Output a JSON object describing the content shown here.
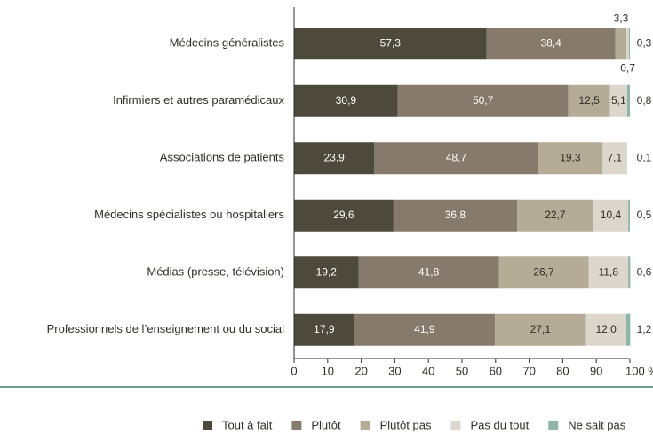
{
  "chart_data": {
    "type": "stacked_bar_horizontal",
    "categories": [
      "Médecins généralistes",
      "Infirmiers et autres paramédicaux",
      "Associations de patients",
      "Médecins spécialistes ou hospitaliers",
      "Médias (presse, télévision)",
      "Professionnels de l’enseignement ou du social"
    ],
    "series": [
      {
        "name": "Tout à fait",
        "color": "#4d4a3d",
        "values": [
          57.3,
          30.9,
          23.9,
          29.6,
          19.2,
          17.9
        ],
        "value_labels": [
          "57,3",
          "30,9",
          "23,9",
          "29,6",
          "19,2",
          "17,9"
        ]
      },
      {
        "name": "Plutôt",
        "color": "#857a6b",
        "values": [
          38.4,
          50.7,
          48.7,
          36.8,
          41.8,
          41.9
        ],
        "value_labels": [
          "38,4",
          "50,7",
          "48,7",
          "36,8",
          "41,8",
          "41,9"
        ]
      },
      {
        "name": "Plutôt pas",
        "color": "#b5ac98",
        "values": [
          3.3,
          12.5,
          19.3,
          22.7,
          26.7,
          27.1
        ],
        "value_labels": [
          "3,3",
          "12,5",
          "19,3",
          "22,7",
          "26,7",
          "27,1"
        ]
      },
      {
        "name": "Pas du tout",
        "color": "#ddd6cc",
        "values": [
          0.7,
          5.1,
          7.1,
          10.4,
          11.8,
          12.0
        ],
        "value_labels": [
          "0,7",
          "5,1",
          "7,1",
          "10,4",
          "11,8",
          "12,0"
        ]
      },
      {
        "name": "Ne sait pas",
        "color": "#8fb5a9",
        "values": [
          0.3,
          0.8,
          0.1,
          0.5,
          0.6,
          1.2
        ],
        "value_labels": [
          "0,3",
          "0,8",
          "0,1",
          "0,5",
          "0,6",
          "1,2"
        ]
      }
    ],
    "xlim": [
      0,
      100
    ],
    "xticks": [
      0,
      10,
      20,
      30,
      40,
      50,
      60,
      70,
      80,
      90,
      {
        "value": 100,
        "label": "100 %"
      }
    ]
  }
}
